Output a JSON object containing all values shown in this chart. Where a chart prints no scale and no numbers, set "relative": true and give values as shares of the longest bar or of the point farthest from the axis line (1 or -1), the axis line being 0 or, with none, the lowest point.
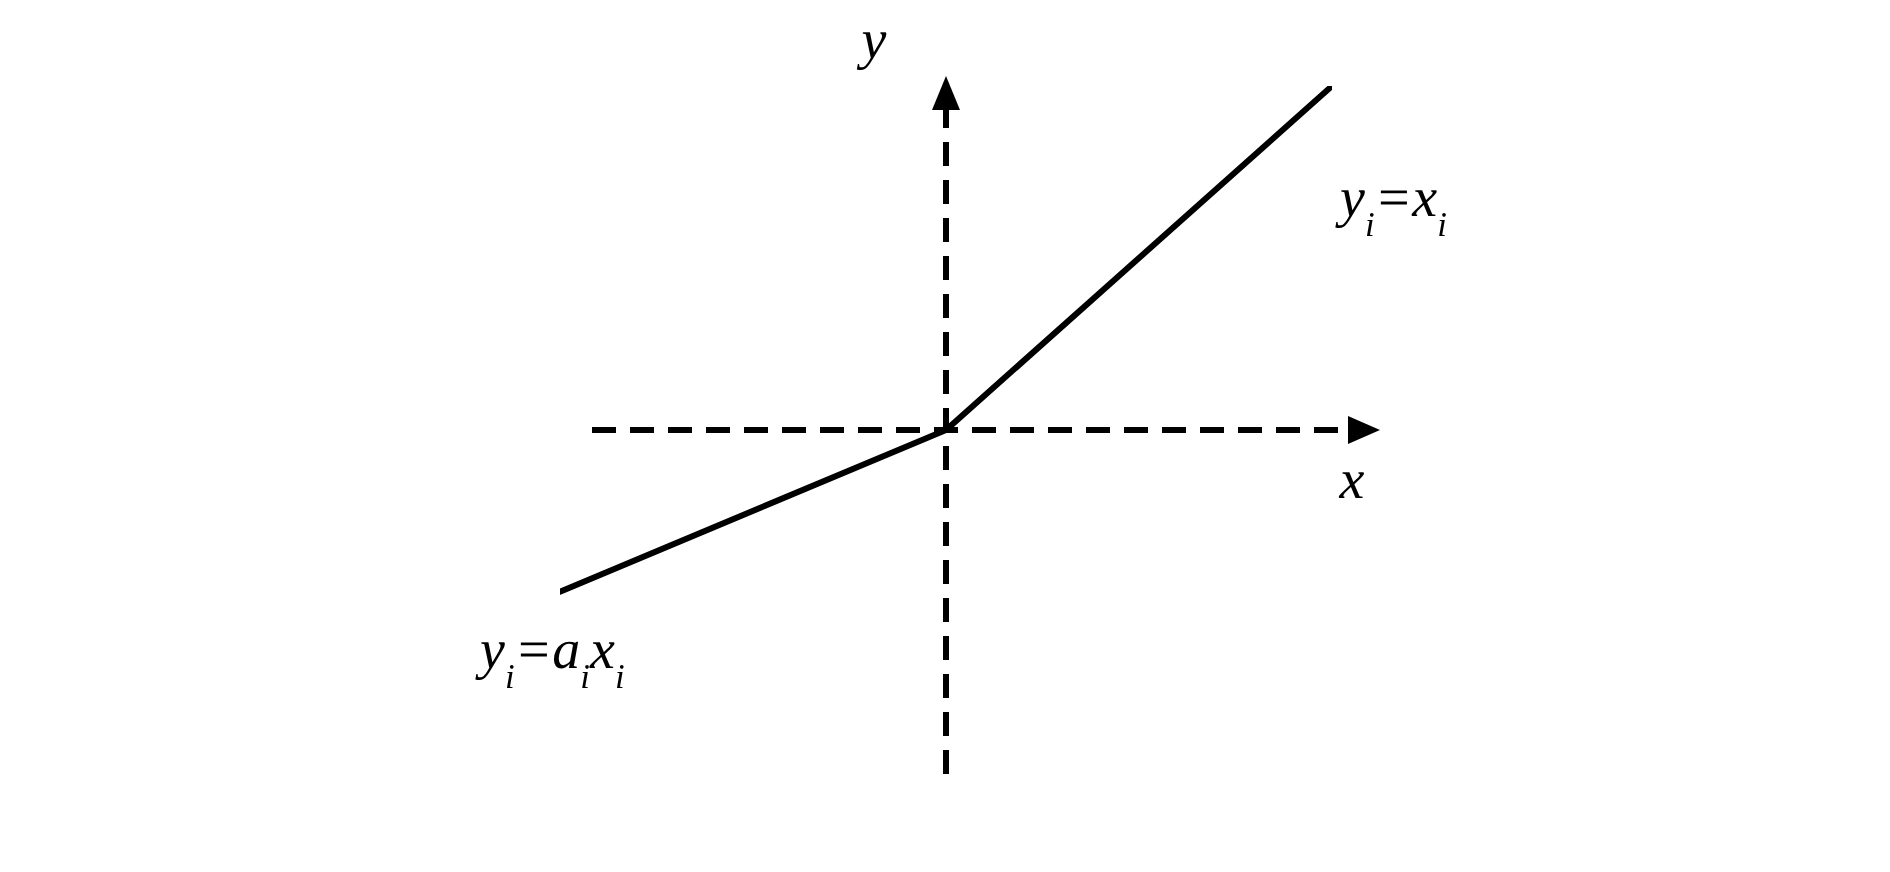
{
  "chart_data": {
    "type": "line",
    "relative": true,
    "xlabel": "x",
    "ylabel": "y",
    "categories": [
      null,
      null,
      null
    ],
    "series": [
      {
        "color": "#000000",
        "values": [
          -0.47,
          0,
          1
        ]
      }
    ],
    "line_style": "solid",
    "annotations": [
      "y$_{i}$=x$_{i}$",
      "y$_{i}$=a$_{i}$x$_{i}$"
    ]
  }
}
